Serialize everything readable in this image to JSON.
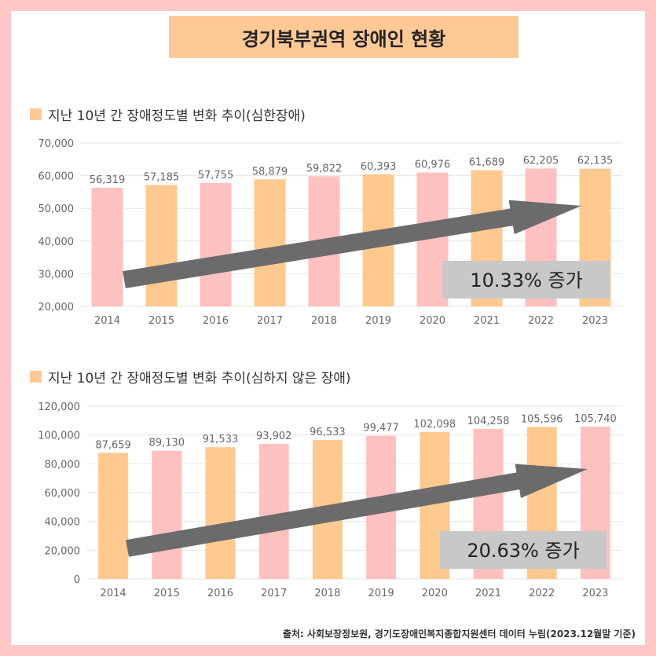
{
  "title": "경기북부권역 장애인 현황",
  "colors": {
    "background": "#ffc7c7",
    "title_box": "#ffc996",
    "bar_pink": "#ffc0c0",
    "bar_orange": "#ffc98f",
    "arrow": "#6b6b6b",
    "label_box": "#c8c8c8"
  },
  "chart_data": [
    {
      "type": "bar",
      "title": "지난 10년 간 장애정도별 변화 추이(심한장애)",
      "categories": [
        "2014",
        "2015",
        "2016",
        "2017",
        "2018",
        "2019",
        "2020",
        "2021",
        "2022",
        "2023"
      ],
      "values": [
        56319,
        57185,
        57755,
        58879,
        59822,
        60393,
        60976,
        61689,
        62205,
        62135
      ],
      "value_labels": [
        "56,319",
        "57,185",
        "57,755",
        "58,879",
        "59,822",
        "60,393",
        "60,976",
        "61,689",
        "62,205",
        "62,135"
      ],
      "y_ticks": [
        "20,000",
        "30,000",
        "40,000",
        "50,000",
        "60,000",
        "70,000"
      ],
      "ylim": [
        20000,
        70000
      ],
      "annotation": "10.33% 증가",
      "grid": true
    },
    {
      "type": "bar",
      "title": "지난 10년 간 장애정도별 변화 추이(심하지 않은 장애)",
      "categories": [
        "2014",
        "2015",
        "2016",
        "2017",
        "2018",
        "2019",
        "2020",
        "2021",
        "2022",
        "2023"
      ],
      "values": [
        87659,
        89130,
        91533,
        93902,
        96533,
        99477,
        102098,
        104258,
        105596,
        105740
      ],
      "value_labels": [
        "87,659",
        "89,130",
        "91,533",
        "93,902",
        "96,533",
        "99,477",
        "102,098",
        "104,258",
        "105,596",
        "105,740"
      ],
      "y_ticks": [
        "0",
        "20,000",
        "40,000",
        "60,000",
        "80,000",
        "100,000",
        "120,000"
      ],
      "ylim": [
        0,
        120000
      ],
      "annotation": "20.63% 증가",
      "grid": true
    }
  ],
  "source": "출처: 사회보장정보원, 경기도장애인복지종합지원센터 데이터 누림(2023.12월말 기준)"
}
